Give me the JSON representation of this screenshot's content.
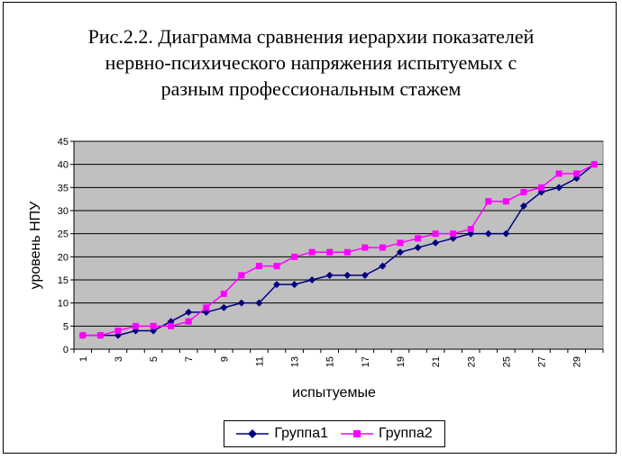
{
  "chart_data": {
    "type": "line",
    "title": "Рис.2.2. Диаграмма сравнения иерархии показателей\nнервно-психического напряжения испытуемых с\nразным профессиональным стажем",
    "xlabel": "испытуемые",
    "ylabel": "уровень НПУ",
    "x": [
      1,
      2,
      3,
      4,
      5,
      6,
      7,
      8,
      9,
      10,
      11,
      12,
      13,
      14,
      15,
      16,
      17,
      18,
      19,
      20,
      21,
      22,
      23,
      24,
      25,
      26,
      27,
      28,
      29,
      30
    ],
    "x_tick_labels": [
      "1",
      "3",
      "5",
      "7",
      "9",
      "11",
      "13",
      "15",
      "17",
      "19",
      "21",
      "23",
      "25",
      "27",
      "29"
    ],
    "y_tick_labels": [
      "0",
      "5",
      "10",
      "15",
      "20",
      "25",
      "30",
      "35",
      "40",
      "45"
    ],
    "ylim": [
      0,
      45
    ],
    "grid": true,
    "legend_position": "bottom",
    "plot_background": "#c0c0c0",
    "series": [
      {
        "name": "Группа1",
        "color": "#000080",
        "marker": "diamond",
        "values": [
          3,
          3,
          3,
          4,
          4,
          6,
          8,
          8,
          9,
          10,
          10,
          14,
          14,
          15,
          16,
          16,
          16,
          18,
          21,
          22,
          23,
          24,
          25,
          25,
          25,
          31,
          34,
          35,
          37,
          40
        ]
      },
      {
        "name": "Группа2",
        "color": "#ff00ff",
        "marker": "square",
        "values": [
          3,
          3,
          4,
          5,
          5,
          5,
          6,
          9,
          12,
          16,
          18,
          18,
          20,
          21,
          21,
          21,
          22,
          22,
          23,
          24,
          25,
          25,
          26,
          32,
          32,
          34,
          35,
          38,
          38,
          40
        ]
      }
    ]
  }
}
